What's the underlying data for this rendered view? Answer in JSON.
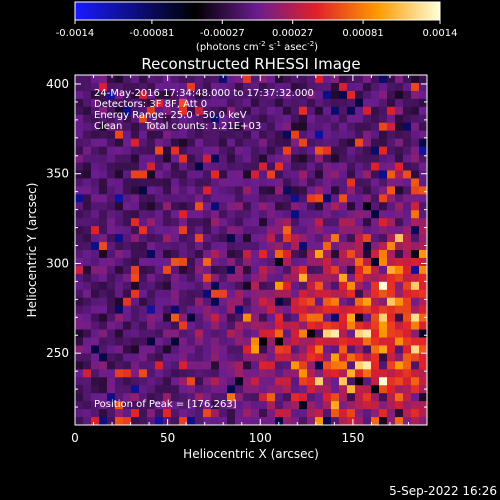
{
  "colorbar": {
    "tick_labels": [
      "-0.0014",
      "-0.00081",
      "-0.00027",
      "0.00027",
      "0.00081",
      "0.0014"
    ],
    "tick_values": [
      -0.0014,
      -0.00081,
      -0.00027,
      0.00027,
      0.00081,
      0.0014
    ],
    "range": [
      -0.0014,
      0.0014
    ],
    "units_label": "(photons cm",
    "units_exp1": "-2",
    "units_mid": " s",
    "units_exp2": "-1",
    "units_end": " asec",
    "units_exp3": "-2",
    "units_close": ")",
    "colors": {
      "min": "#1a1aff",
      "low": "#000000",
      "mid": "#6a1d8f",
      "midhigh": "#e0202a",
      "high": "#ff9a00",
      "max": "#ffffd8"
    }
  },
  "chart_data": {
    "type": "heatmap",
    "title": "Reconstructed RHESSI Image",
    "xlabel": "Heliocentric X (arcsec)",
    "ylabel": "Heliocentric Y (arcsec)",
    "xlim": [
      0,
      190
    ],
    "ylim": [
      210,
      405
    ],
    "xticks": [
      0,
      50,
      100,
      150
    ],
    "xtick_labels": [
      "0",
      "50",
      "100",
      "150"
    ],
    "yticks": [
      250,
      300,
      350,
      400
    ],
    "ytick_labels": [
      "250",
      "300",
      "350",
      "400"
    ],
    "annotations": [
      "24-May-2016 17:34:48.000 to 17:37:32.000",
      "Detectors: 3F 8F, Att 0",
      "Energy Range: 25.0 - 50.0 keV",
      "Clean",
      "Total counts: 1.21E+03"
    ],
    "peak_label": "Position of Peak = [176,263]",
    "peak_position": [
      176,
      263
    ],
    "grid": false
  },
  "footer": {
    "date": "5-Sep-2022 16:26"
  }
}
